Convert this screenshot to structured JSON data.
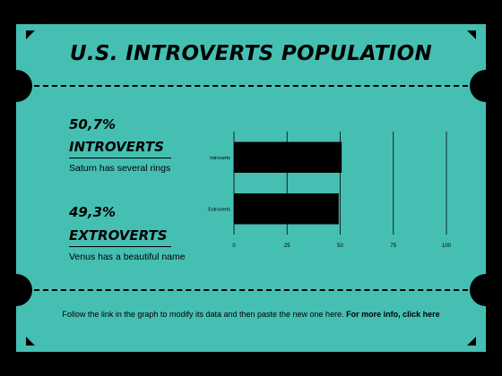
{
  "title": "U.S. INTROVERTS POPULATION",
  "stats": [
    {
      "percent": "50,7%",
      "label": "INTROVERTS",
      "description": "Saturn has several rings"
    },
    {
      "percent": "49,3%",
      "label": "EXTROVERTS",
      "description": "Venus has a beautiful name"
    }
  ],
  "footer": {
    "text": "Follow the link in the graph to modify its data and then paste the new one here. ",
    "link": "For more info, click here"
  },
  "colors": {
    "background": "#000000",
    "card": "#46bfb3",
    "bar": "#000000"
  },
  "chart_data": {
    "type": "bar",
    "orientation": "horizontal",
    "categories": [
      "Introverts",
      "Extroverts"
    ],
    "values": [
      50.7,
      49.3
    ],
    "xlim": [
      0,
      100
    ],
    "xticks": [
      0,
      25,
      50,
      75,
      100
    ],
    "grid": true
  }
}
